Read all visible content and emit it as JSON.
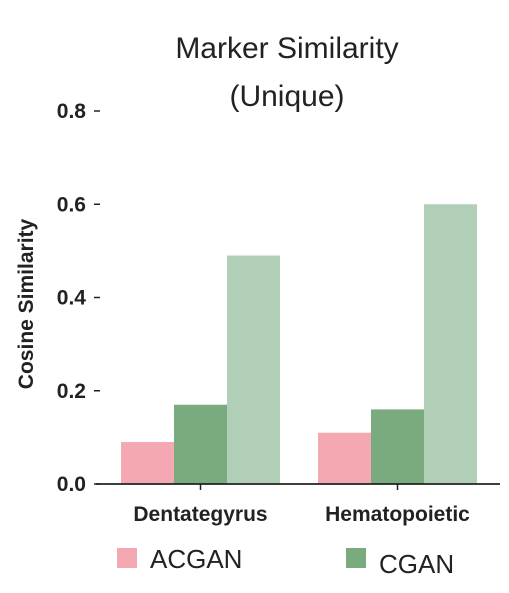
{
  "chart_data": {
    "type": "bar",
    "title": [
      "Marker Similarity",
      "(Unique)"
    ],
    "xlabel": "",
    "ylabel": "Cosine Similarity",
    "categories": [
      "Dentategyrus",
      "Hematopoietic"
    ],
    "ylim": [
      0,
      0.8
    ],
    "yticks": [
      "0.0",
      "0.2",
      "0.4",
      "0.6",
      "0.8"
    ],
    "series": [
      {
        "name": "ACGAN",
        "color": "#f4a8b2",
        "values": [
          0.09,
          0.11
        ]
      },
      {
        "name": "CGAN",
        "color": "#7aab7e",
        "values": [
          0.17,
          0.16
        ]
      },
      {
        "name": "",
        "color": "#b1cfb7",
        "values": [
          0.49,
          0.6
        ]
      }
    ],
    "legend": [
      "ACGAN",
      "CGAN"
    ],
    "legend_position": "bottom",
    "grid": false
  }
}
